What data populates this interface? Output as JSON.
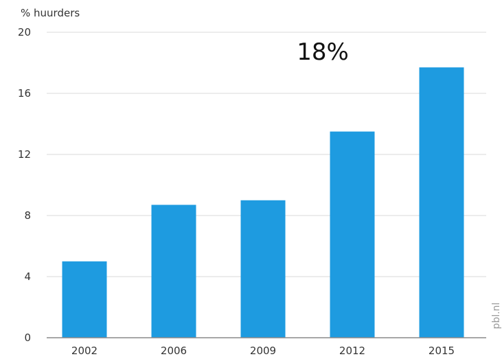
{
  "chart_data": {
    "type": "bar",
    "ylabel": "% huurders",
    "categories": [
      "2002",
      "2006",
      "2009",
      "2012",
      "2015"
    ],
    "values": [
      5.0,
      8.7,
      9.0,
      13.5,
      17.7
    ],
    "ylim": [
      0,
      20
    ],
    "yticks": [
      "0",
      "4",
      "8",
      "12",
      "16",
      "20"
    ],
    "grid": true,
    "annotation": "18%",
    "source": "pbl.nl",
    "bar_color": "#1e9be0"
  }
}
